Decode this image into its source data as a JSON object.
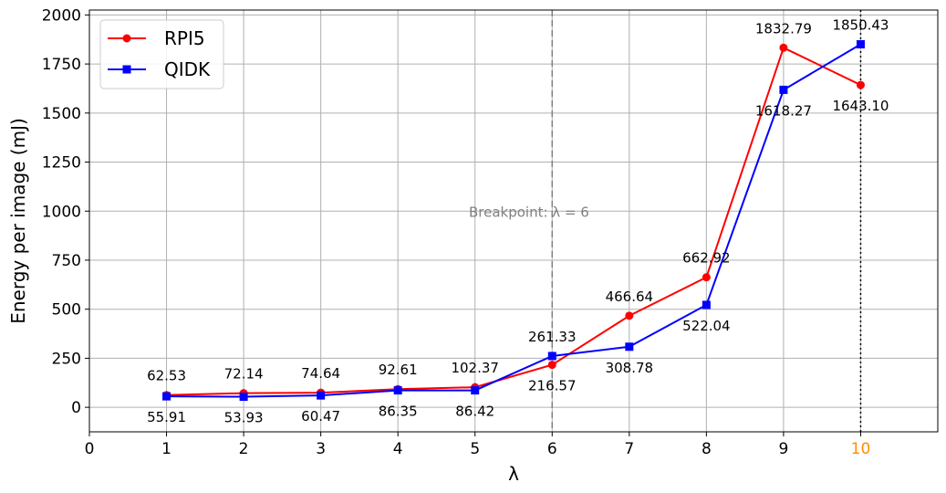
{
  "chart_data": {
    "type": "line",
    "xlabel": "λ",
    "ylabel": "Energy per image (mJ)",
    "xlim": [
      0,
      11
    ],
    "ylim": [
      -125,
      2025
    ],
    "x_ticks": [
      0,
      1,
      2,
      3,
      4,
      5,
      6,
      7,
      8,
      9,
      10
    ],
    "x_tick_labels": [
      "0",
      "1",
      "2",
      "3",
      "4",
      "5",
      "6",
      "7",
      "8",
      "9",
      "10"
    ],
    "highlight_tick": {
      "value": 10,
      "color": "#ff8c00"
    },
    "y_ticks": [
      0,
      250,
      500,
      750,
      1000,
      1250,
      1500,
      1750,
      2000
    ],
    "y_tick_labels": [
      "0",
      "250",
      "500",
      "750",
      "1000",
      "1250",
      "1500",
      "1750",
      "2000"
    ],
    "grid": true,
    "legend_position": "top-left",
    "x": [
      1,
      2,
      3,
      4,
      5,
      6,
      7,
      8,
      9,
      10
    ],
    "series": [
      {
        "name": "RPI5",
        "color": "#ff0000",
        "marker": "circle",
        "values": [
          62.53,
          72.14,
          74.64,
          92.61,
          102.37,
          216.57,
          466.64,
          662.92,
          1832.79,
          1643.1
        ],
        "labels": [
          "62.53",
          "72.14",
          "74.64",
          "92.61",
          "102.37",
          "216.57",
          "466.64",
          "662.92",
          "1832.79",
          "1643.10"
        ]
      },
      {
        "name": "QIDK",
        "color": "#0000ff",
        "marker": "square",
        "values": [
          55.91,
          53.93,
          60.47,
          86.35,
          86.42,
          261.33,
          308.78,
          522.04,
          1618.27,
          1850.43
        ],
        "labels": [
          "55.91",
          "53.93",
          "60.47",
          "86.35",
          "86.42",
          "261.33",
          "308.78",
          "522.04",
          "1618.27",
          "1850.43"
        ]
      }
    ],
    "vlines": [
      {
        "x": 6,
        "style": "dashed",
        "color": "#808080"
      },
      {
        "x": 10,
        "style": "dotted",
        "color": "#000000"
      }
    ],
    "annotations": [
      {
        "text": "Breakpoint: λ = 6",
        "x": 5.7,
        "y": 1000,
        "color": "#808080"
      }
    ]
  }
}
